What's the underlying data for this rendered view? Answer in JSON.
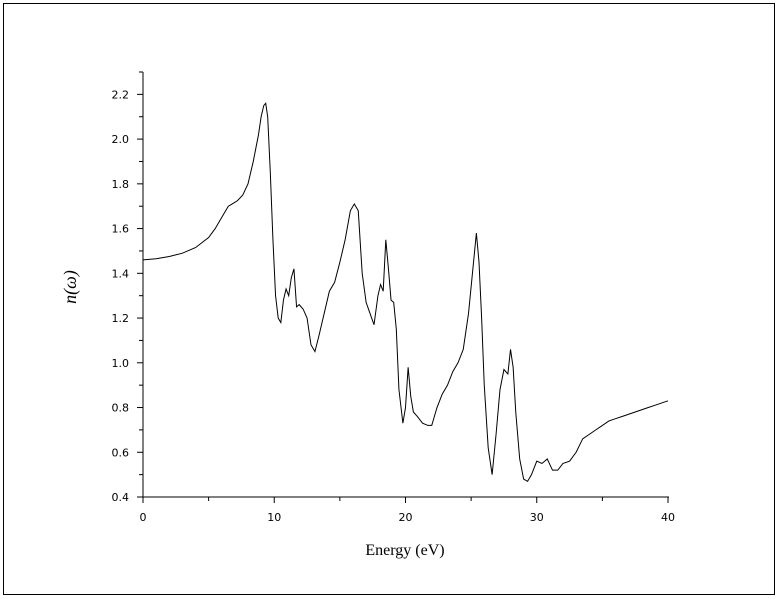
{
  "chart_data": {
    "type": "line",
    "title": "",
    "xlabel": "Energy (eV)",
    "ylabel": "n(ω)",
    "xlim": [
      0,
      40
    ],
    "ylim": [
      0.4,
      2.3
    ],
    "x_ticks": [
      0,
      10,
      20,
      30,
      40
    ],
    "x_tick_labels": [
      "0",
      "10",
      "20",
      "30",
      "40"
    ],
    "y_ticks": [
      0.4,
      0.6,
      0.8,
      1.0,
      1.2,
      1.4,
      1.6,
      1.8,
      2.0,
      2.2
    ],
    "y_tick_labels": [
      "0.4",
      "0.6",
      "0.8",
      "1.0",
      "1.2",
      "1.4",
      "1.6",
      "1.8",
      "2.0",
      "2.2"
    ],
    "grid": false,
    "legend": "none",
    "line_color": "#000000",
    "series": [
      {
        "x": [
          0,
          1,
          2,
          3,
          4,
          5,
          5.5,
          6,
          6.5,
          6.8,
          7.2,
          7.6,
          8.0,
          8.4,
          8.8,
          9.0,
          9.2,
          9.35,
          9.5,
          9.7,
          9.9,
          10.1,
          10.3,
          10.5,
          10.7,
          10.9,
          11.1,
          11.3,
          11.5,
          11.7,
          11.9,
          12.2,
          12.5,
          12.8,
          13.1,
          13.4,
          13.8,
          14.2,
          14.6,
          15.0,
          15.4,
          15.8,
          16.1,
          16.4,
          16.7,
          17.0,
          17.3,
          17.6,
          17.9,
          18.1,
          18.3,
          18.5,
          18.7,
          18.9,
          19.1,
          19.3,
          19.5,
          19.8,
          20.0,
          20.2,
          20.4,
          20.6,
          20.9,
          21.3,
          21.7,
          22.0,
          22.4,
          22.8,
          23.2,
          23.6,
          24.0,
          24.4,
          24.8,
          25.1,
          25.4,
          25.6,
          25.8,
          26.0,
          26.3,
          26.6,
          26.9,
          27.2,
          27.5,
          27.8,
          28.0,
          28.2,
          28.4,
          28.7,
          29.0,
          29.3,
          29.6,
          30.0,
          30.4,
          30.8,
          31.2,
          31.6,
          32.0,
          32.5,
          33.0,
          33.5,
          34.0,
          34.5,
          35.0,
          35.5,
          36.0,
          36.5,
          37.0,
          37.5,
          38.0,
          38.5,
          39.0,
          39.5,
          40.0
        ],
        "y": [
          1.46,
          1.465,
          1.475,
          1.49,
          1.515,
          1.56,
          1.6,
          1.65,
          1.7,
          1.71,
          1.725,
          1.75,
          1.8,
          1.9,
          2.02,
          2.1,
          2.15,
          2.16,
          2.1,
          1.85,
          1.55,
          1.3,
          1.2,
          1.18,
          1.28,
          1.33,
          1.3,
          1.38,
          1.42,
          1.25,
          1.26,
          1.24,
          1.2,
          1.08,
          1.05,
          1.12,
          1.22,
          1.32,
          1.36,
          1.45,
          1.55,
          1.68,
          1.71,
          1.68,
          1.4,
          1.27,
          1.22,
          1.17,
          1.3,
          1.35,
          1.32,
          1.55,
          1.42,
          1.28,
          1.27,
          1.15,
          0.88,
          0.73,
          0.8,
          0.98,
          0.85,
          0.78,
          0.76,
          0.73,
          0.72,
          0.72,
          0.8,
          0.86,
          0.9,
          0.96,
          1.0,
          1.06,
          1.22,
          1.4,
          1.58,
          1.45,
          1.2,
          0.9,
          0.62,
          0.5,
          0.68,
          0.88,
          0.97,
          0.95,
          1.06,
          0.98,
          0.78,
          0.57,
          0.48,
          0.47,
          0.5,
          0.56,
          0.55,
          0.57,
          0.52,
          0.52,
          0.55,
          0.56,
          0.6,
          0.66,
          0.68,
          0.7,
          0.72,
          0.74,
          0.75,
          0.76,
          0.77,
          0.78,
          0.79,
          0.8,
          0.81,
          0.82,
          0.83
        ]
      }
    ]
  }
}
